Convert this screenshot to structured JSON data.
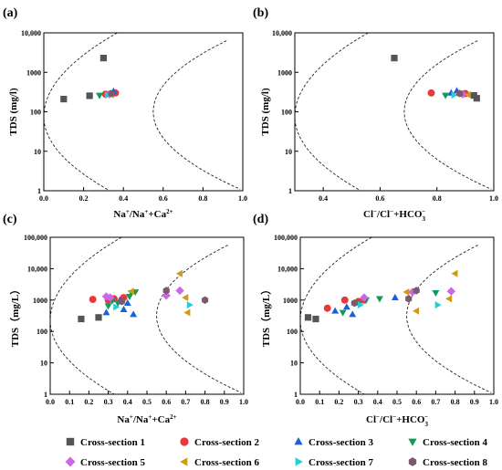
{
  "legend": {
    "items": [
      {
        "label": "Cross-section 1",
        "color": "#555555",
        "marker": "square"
      },
      {
        "label": "Cross-section 2",
        "color": "#e8383d",
        "marker": "circle"
      },
      {
        "label": "Cross-section 3",
        "color": "#1f5fd6",
        "marker": "triangle-up"
      },
      {
        "label": "Cross-section 4",
        "color": "#119a5c",
        "marker": "triangle-down"
      },
      {
        "label": "Cross-section 5",
        "color": "#cc66e6",
        "marker": "diamond"
      },
      {
        "label": "Cross-section 6",
        "color": "#d19a12",
        "marker": "triangle-left"
      },
      {
        "label": "Cross-section 7",
        "color": "#1fd1d1",
        "marker": "triangle-right"
      },
      {
        "label": "Cross-section 8",
        "color": "#7a5a6e",
        "marker": "hexagon"
      }
    ]
  },
  "chart_data": [
    {
      "type": "scatter",
      "panel_label": "(a)",
      "ylabel": "TDS (mg/l)",
      "xlabel": "Na+/Na++Ca2+",
      "xlim": [
        0.0,
        1.0
      ],
      "ylim": [
        1,
        10000
      ],
      "yscale": "log",
      "xticks": [
        "0.0",
        "0.2",
        "0.4",
        "0.6",
        "0.8",
        "1.0"
      ],
      "yticks": [
        "1",
        "10",
        "100",
        "1000",
        "10,000"
      ],
      "series": [
        {
          "points": [
            [
              0.1,
              210
            ],
            [
              0.23,
              255
            ],
            [
              0.3,
              2300
            ]
          ]
        },
        {
          "points": [
            [
              0.36,
              300
            ],
            [
              0.31,
              280
            ]
          ]
        },
        {
          "points": [
            [
              0.35,
              330
            ]
          ]
        },
        {
          "points": [
            [
              0.28,
              260
            ]
          ]
        },
        {
          "points": [
            [
              0.33,
              280
            ]
          ]
        },
        {
          "points": [
            [
              0.34,
              270
            ]
          ]
        },
        {
          "points": [
            [
              0.32,
              265
            ]
          ]
        },
        {
          "points": [
            [
              0.34,
              290
            ]
          ]
        }
      ]
    },
    {
      "type": "scatter",
      "panel_label": "(b)",
      "ylabel": "TDS (mg/l)",
      "xlabel": "Cl−/Cl−+HCO3−",
      "xlim": [
        0.3,
        1.0
      ],
      "ylim": [
        1,
        10000
      ],
      "yscale": "log",
      "xticks": [
        "0.4",
        "0.6",
        "0.8",
        "1.0"
      ],
      "yticks": [
        "1",
        "10",
        "100",
        "1000",
        "10,000"
      ],
      "series": [
        {
          "points": [
            [
              0.65,
              2300
            ],
            [
              0.94,
              220
            ],
            [
              0.93,
              260
            ]
          ]
        },
        {
          "points": [
            [
              0.78,
              300
            ],
            [
              0.9,
              290
            ]
          ]
        },
        {
          "points": [
            [
              0.87,
              340
            ],
            [
              0.85,
              300
            ]
          ]
        },
        {
          "points": [
            [
              0.83,
              260
            ]
          ]
        },
        {
          "points": [
            [
              0.89,
              280
            ]
          ]
        },
        {
          "points": [
            [
              0.91,
              270
            ]
          ]
        },
        {
          "points": [
            [
              0.86,
              265
            ]
          ]
        },
        {
          "points": [
            [
              0.88,
              290
            ]
          ]
        }
      ]
    },
    {
      "type": "scatter",
      "panel_label": "(c)",
      "ylabel": "TDS（mg/L）",
      "xlabel": "Na+/Na++Ca2+",
      "xlim": [
        0.0,
        1.0
      ],
      "ylim": [
        1,
        100000
      ],
      "yscale": "log",
      "xticks": [
        "0.0",
        "0.1",
        "0.2",
        "0.3",
        "0.4",
        "0.5",
        "0.6",
        "0.7",
        "0.8",
        "0.9",
        "1.0"
      ],
      "yticks": [
        "1",
        "10",
        "100",
        "1000",
        "10,000",
        "100,000"
      ],
      "series": [
        {
          "points": [
            [
              0.16,
              250
            ],
            [
              0.25,
              280
            ]
          ]
        },
        {
          "points": [
            [
              0.22,
              1050
            ],
            [
              0.3,
              1000
            ],
            [
              0.33,
              1100
            ],
            [
              0.38,
              1200
            ]
          ]
        },
        {
          "points": [
            [
              0.29,
              400
            ],
            [
              0.38,
              500
            ],
            [
              0.43,
              350
            ],
            [
              0.36,
              1000
            ],
            [
              0.4,
              800
            ]
          ]
        },
        {
          "points": [
            [
              0.3,
              650
            ],
            [
              0.32,
              950
            ],
            [
              0.35,
              800
            ],
            [
              0.42,
              1700
            ],
            [
              0.44,
              1800
            ],
            [
              0.41,
              1300
            ]
          ]
        },
        {
          "points": [
            [
              0.29,
              1300
            ],
            [
              0.31,
              1200
            ],
            [
              0.6,
              1400
            ],
            [
              0.67,
              2000
            ]
          ]
        },
        {
          "points": [
            [
              0.67,
              7000
            ],
            [
              0.7,
              1200
            ],
            [
              0.71,
              400
            ],
            [
              0.42,
              1900
            ]
          ]
        },
        {
          "points": [
            [
              0.72,
              700
            ],
            [
              0.34,
              600
            ]
          ]
        },
        {
          "points": [
            [
              0.6,
              2000
            ],
            [
              0.8,
              1000
            ],
            [
              0.37,
              900
            ]
          ]
        }
      ]
    },
    {
      "type": "scatter",
      "panel_label": "(d)",
      "ylabel": "TDS（mg/L）",
      "xlabel": "Cl−/Cl−+HCO3−",
      "xlim": [
        0.0,
        1.0
      ],
      "ylim": [
        1,
        100000
      ],
      "yscale": "log",
      "xticks": [
        "0.0",
        "0.1",
        "0.2",
        "0.3",
        "0.4",
        "0.5",
        "0.6",
        "0.7",
        "0.8",
        "0.9",
        "1.0"
      ],
      "yticks": [
        "1",
        "10",
        "100",
        "1000",
        "10,000",
        "100,000"
      ],
      "series": [
        {
          "points": [
            [
              0.04,
              280
            ],
            [
              0.08,
              250
            ]
          ]
        },
        {
          "points": [
            [
              0.14,
              550
            ],
            [
              0.23,
              1000
            ],
            [
              0.3,
              900
            ],
            [
              0.33,
              1000
            ]
          ]
        },
        {
          "points": [
            [
              0.18,
              450
            ],
            [
              0.27,
              350
            ],
            [
              0.49,
              1200
            ],
            [
              0.24,
              600
            ]
          ]
        },
        {
          "points": [
            [
              0.22,
              400
            ],
            [
              0.3,
              800
            ],
            [
              0.34,
              1000
            ],
            [
              0.41,
              1100
            ],
            [
              0.7,
              1700
            ]
          ]
        },
        {
          "points": [
            [
              0.33,
              1200
            ],
            [
              0.58,
              1800
            ],
            [
              0.78,
              1900
            ]
          ]
        },
        {
          "points": [
            [
              0.55,
              1800
            ],
            [
              0.6,
              450
            ],
            [
              0.8,
              7000
            ],
            [
              0.77,
              1100
            ]
          ]
        },
        {
          "points": [
            [
              0.71,
              700
            ],
            [
              0.31,
              700
            ]
          ]
        },
        {
          "points": [
            [
              0.56,
              1100
            ],
            [
              0.6,
              2000
            ],
            [
              0.28,
              800
            ]
          ]
        }
      ]
    }
  ]
}
